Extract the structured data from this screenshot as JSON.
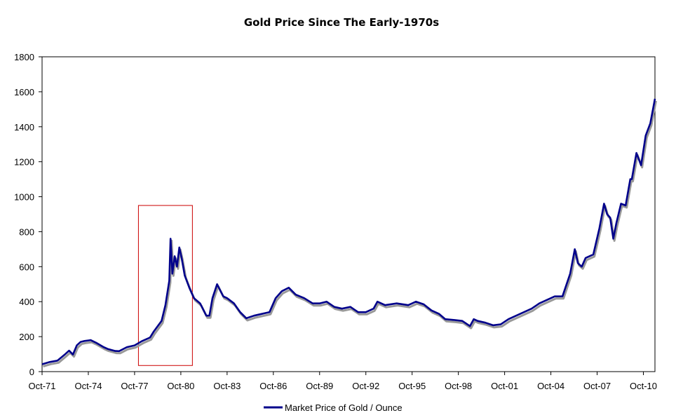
{
  "chart_data": {
    "type": "line",
    "title": "Gold Price Since The Early-1970s",
    "xlabel": "",
    "ylabel": "",
    "ylim": [
      0,
      1800
    ],
    "yticks": [
      0,
      200,
      400,
      600,
      800,
      1000,
      1200,
      1400,
      1600,
      1800
    ],
    "x_range": [
      1971.75,
      2011.5
    ],
    "x_tick_labels": [
      "Oct-71",
      "Oct-74",
      "Oct-77",
      "Oct-80",
      "Oct-83",
      "Oct-86",
      "Oct-89",
      "Oct-92",
      "Oct-95",
      "Oct-98",
      "Oct-01",
      "Oct-04",
      "Oct-07",
      "Oct-10"
    ],
    "x_tick_values": [
      1971.75,
      1974.75,
      1977.75,
      1980.75,
      1983.75,
      1986.75,
      1989.75,
      1992.75,
      1995.75,
      1998.75,
      2001.75,
      2004.75,
      2007.75,
      2010.75
    ],
    "grid": false,
    "legend_position": "bottom",
    "highlight_box": {
      "x_from": 1978.0,
      "x_to": 1981.5,
      "y_from": 35,
      "y_to": 950,
      "color": "#cc0000"
    },
    "series": [
      {
        "name": "Market Price of Gold / Ounce",
        "color": "#00008b",
        "shadow_color": "#999999",
        "x": [
          1971.75,
          1972.25,
          1972.75,
          1973.25,
          1973.5,
          1973.75,
          1974.0,
          1974.25,
          1974.5,
          1974.9,
          1975.25,
          1975.75,
          1976.0,
          1976.5,
          1976.75,
          1977.25,
          1977.75,
          1978.25,
          1978.75,
          1979.0,
          1979.5,
          1979.75,
          1980.0,
          1980.08,
          1980.2,
          1980.35,
          1980.5,
          1980.65,
          1980.8,
          1981.0,
          1981.3,
          1981.6,
          1982.0,
          1982.4,
          1982.6,
          1982.8,
          1983.1,
          1983.5,
          1983.75,
          1984.2,
          1984.6,
          1985.0,
          1985.5,
          1986.0,
          1986.5,
          1986.9,
          1987.3,
          1987.75,
          1988.2,
          1988.75,
          1989.3,
          1989.75,
          1990.2,
          1990.7,
          1991.2,
          1991.75,
          1992.25,
          1992.75,
          1993.25,
          1993.5,
          1994.0,
          1994.75,
          1995.5,
          1996.0,
          1996.5,
          1997.0,
          1997.5,
          1997.9,
          1998.5,
          1999.0,
          1999.5,
          1999.75,
          2000.0,
          2000.5,
          2001.0,
          2001.5,
          2002.0,
          2002.5,
          2003.0,
          2003.5,
          2004.0,
          2004.5,
          2005.0,
          2005.5,
          2006.0,
          2006.3,
          2006.5,
          2006.75,
          2007.0,
          2007.5,
          2007.9,
          2008.2,
          2008.4,
          2008.6,
          2008.8,
          2009.0,
          2009.3,
          2009.6,
          2009.9,
          2010.0,
          2010.3,
          2010.6,
          2010.9,
          2011.2,
          2011.5
        ],
        "values": [
          42,
          55,
          63,
          100,
          120,
          98,
          150,
          170,
          175,
          180,
          165,
          140,
          130,
          118,
          117,
          140,
          150,
          175,
          195,
          230,
          290,
          380,
          520,
          760,
          560,
          660,
          600,
          710,
          650,
          550,
          480,
          420,
          390,
          320,
          320,
          420,
          500,
          430,
          420,
          390,
          340,
          305,
          320,
          330,
          340,
          420,
          460,
          480,
          440,
          420,
          390,
          390,
          400,
          370,
          360,
          370,
          340,
          340,
          360,
          400,
          380,
          390,
          380,
          400,
          385,
          350,
          330,
          300,
          295,
          290,
          260,
          300,
          290,
          280,
          265,
          270,
          300,
          320,
          340,
          360,
          390,
          410,
          430,
          430,
          560,
          700,
          620,
          600,
          650,
          670,
          820,
          960,
          900,
          880,
          760,
          850,
          960,
          950,
          1100,
          1100,
          1250,
          1180,
          1350,
          1420,
          1560
        ]
      }
    ]
  }
}
